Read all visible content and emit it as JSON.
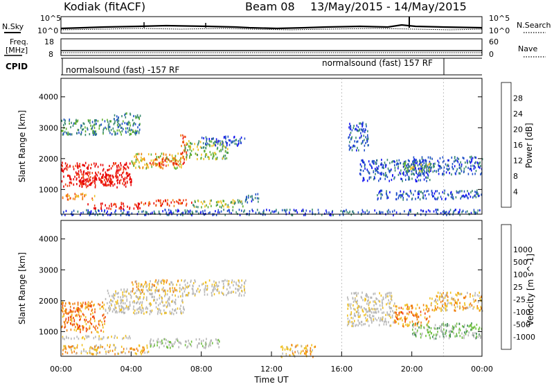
{
  "header": {
    "station": "Kodiak (fitACF)",
    "beam": "Beam 08",
    "date_range": "13/May/2015 - 14/May/2015"
  },
  "noise_panel": {
    "left_label": "N.Sky",
    "right_label": "N.Search",
    "left_ticks": [
      "10^5",
      "10^0"
    ],
    "right_ticks": [
      "10^5",
      "10^0"
    ]
  },
  "freq_panel": {
    "left_label_line1": "Freq.",
    "left_label_line2": "[MHz]",
    "right_label": "Nave",
    "left_ticks": [
      "18",
      "8"
    ],
    "right_ticks": [
      "60",
      "0"
    ]
  },
  "cpid_panel": {
    "label": "CPID",
    "mode1": "normalsound (fast) -157 RF",
    "mode2": "normalsound (fast) 157 RF"
  },
  "colors": {
    "power_scale": [
      "#1010f0",
      "#2050c8",
      "#3a8a70",
      "#60b030",
      "#f0c020",
      "#f08010",
      "#f04010",
      "#e80000"
    ],
    "velocity_scale": [
      "#e80000",
      "#f04010",
      "#f08010",
      "#f0c020",
      "#b8b8b8",
      "#b8b8b8",
      "#70c040",
      "#3a8a50",
      "#2050c8",
      "#1010f0"
    ]
  },
  "chart_data": [
    {
      "type": "heatmap",
      "name": "power",
      "ylabel": "Slant Range [km]",
      "yticks": [
        1000,
        2000,
        3000,
        4000
      ],
      "ylim": [
        200,
        4600
      ],
      "colorbar_label": "Power [dB]",
      "colorbar_ticks": [
        "4",
        "8",
        "12",
        "16",
        "20",
        "24",
        "28"
      ],
      "regions": [
        {
          "t0": 0.0,
          "t1": 4.0,
          "r0": 1100,
          "r1": 1900,
          "level": 7
        },
        {
          "t0": 1.0,
          "t1": 3.0,
          "r0": 1150,
          "r1": 1500,
          "level": 7
        },
        {
          "t0": 4.0,
          "t1": 7.0,
          "r0": 1700,
          "r1": 2200,
          "level": 4
        },
        {
          "t0": 5.0,
          "t1": 7.0,
          "r0": 1800,
          "r1": 2050,
          "level": 6
        },
        {
          "t0": 6.8,
          "t1": 7.2,
          "r0": 2000,
          "r1": 2800,
          "level": 6
        },
        {
          "t0": 7.0,
          "t1": 9.5,
          "r0": 2000,
          "r1": 2600,
          "level": 3
        },
        {
          "t0": 8.0,
          "t1": 10.5,
          "r0": 2450,
          "r1": 2750,
          "level": 1
        },
        {
          "t0": 0.0,
          "t1": 2.5,
          "r0": 2800,
          "r1": 3300,
          "level": 2
        },
        {
          "t0": 2.5,
          "t1": 4.5,
          "r0": 2800,
          "r1": 3500,
          "level": 2
        },
        {
          "t0": 1.5,
          "t1": 4.5,
          "r0": 400,
          "r1": 600,
          "level": 7
        },
        {
          "t0": 4.5,
          "t1": 7.5,
          "r0": 500,
          "r1": 700,
          "level": 6
        },
        {
          "t0": 7.5,
          "t1": 10.5,
          "r0": 450,
          "r1": 700,
          "level": 3
        },
        {
          "t0": 0.0,
          "t1": 2.0,
          "r0": 700,
          "r1": 900,
          "level": 5
        },
        {
          "t0": 10.5,
          "t1": 11.3,
          "r0": 600,
          "r1": 900,
          "level": 1
        },
        {
          "t0": 16.3,
          "t1": 17.5,
          "r0": 2300,
          "r1": 3200,
          "level": 1
        },
        {
          "t0": 17.0,
          "t1": 21.0,
          "r0": 1300,
          "r1": 2000,
          "level": 1
        },
        {
          "t0": 18.0,
          "t1": 24.0,
          "r0": 700,
          "r1": 1000,
          "level": 1
        },
        {
          "t0": 20.0,
          "t1": 24.0,
          "r0": 1500,
          "r1": 2100,
          "level": 1
        },
        {
          "t0": 19.5,
          "t1": 21.0,
          "r0": 1600,
          "r1": 1900,
          "level": 3
        },
        {
          "t0": 0.0,
          "t1": 24.0,
          "r0": 200,
          "r1": 380,
          "level": 1
        }
      ]
    },
    {
      "type": "heatmap",
      "name": "velocity",
      "ylabel": "Slant Range [km]",
      "yticks": [
        1000,
        2000,
        3000,
        4000
      ],
      "ylim": [
        200,
        4600
      ],
      "xlabel": "Time UT",
      "xticks": [
        "00:00",
        "04:00",
        "08:00",
        "12:00",
        "16:00",
        "20:00",
        "00:00"
      ],
      "xlim": [
        0,
        24
      ],
      "colorbar_label": "Velocity [m s^-1]",
      "colorbar_ticks": [
        "-1000",
        "-500",
        "-100",
        "-25",
        "25",
        "100",
        "500",
        "1000"
      ],
      "regions": [
        {
          "t0": 0.0,
          "t1": 2.5,
          "r0": 1000,
          "r1": 2000,
          "level": 2
        },
        {
          "t0": 2.5,
          "t1": 7.0,
          "r0": 1600,
          "r1": 2400,
          "level": 4
        },
        {
          "t0": 7.0,
          "t1": 10.5,
          "r0": 2200,
          "r1": 2700,
          "level": 4
        },
        {
          "t0": 0.0,
          "t1": 5.0,
          "r0": 300,
          "r1": 600,
          "level": 3
        },
        {
          "t0": 5.0,
          "t1": 9.0,
          "r0": 500,
          "r1": 800,
          "level": 5
        },
        {
          "t0": 0.0,
          "t1": 4.0,
          "r0": 780,
          "r1": 900,
          "level": 4
        },
        {
          "t0": 4.0,
          "t1": 7.0,
          "r0": 2300,
          "r1": 2700,
          "level": 3
        },
        {
          "t0": 16.3,
          "t1": 19.0,
          "r0": 1200,
          "r1": 2300,
          "level": 4
        },
        {
          "t0": 19.0,
          "t1": 21.0,
          "r0": 1200,
          "r1": 1900,
          "level": 2
        },
        {
          "t0": 21.0,
          "t1": 24.0,
          "r0": 1700,
          "r1": 2300,
          "level": 3
        },
        {
          "t0": 20.0,
          "t1": 24.0,
          "r0": 800,
          "r1": 1300,
          "level": 6
        },
        {
          "t0": 12.5,
          "t1": 14.5,
          "r0": 200,
          "r1": 600,
          "level": 3
        }
      ]
    }
  ]
}
